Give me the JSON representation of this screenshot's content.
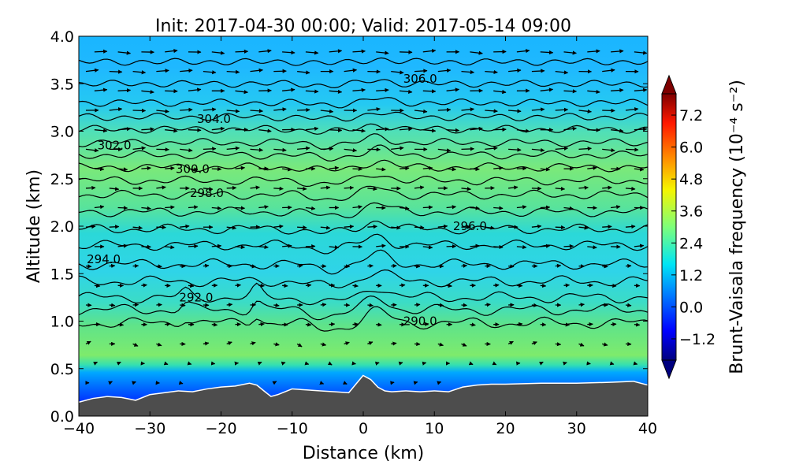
{
  "chart_data": {
    "type": "contour",
    "title": "Init: 2017-04-30 00:00; Valid: 2017-05-14 09:00",
    "xlabel": "Distance (km)",
    "ylabel": "Altitude (km)",
    "xlim": [
      -40,
      40
    ],
    "ylim": [
      0,
      4
    ],
    "x_ticks": [
      "−40",
      "−30",
      "−20",
      "−10",
      "0",
      "10",
      "20",
      "30",
      "40"
    ],
    "y_ticks": [
      "0.0",
      "0.5",
      "1.0",
      "1.5",
      "2.0",
      "2.5",
      "3.0",
      "3.5",
      "4.0"
    ],
    "grid": false,
    "colorbar": {
      "label": "Brunt-Vaisala frequency (10⁻⁴ s⁻²)",
      "range": [
        -2.0,
        8.0
      ],
      "ticks": [
        "−1.2",
        "0.0",
        "1.2",
        "2.4",
        "3.6",
        "4.8",
        "6.0",
        "7.2"
      ],
      "colormap": "jet",
      "extend": "both"
    },
    "contour_labels": [
      {
        "text": "306.0",
        "x": 8.0,
        "y": 3.55
      },
      {
        "text": "304.0",
        "x": -21.0,
        "y": 3.13
      },
      {
        "text": "302.0",
        "x": -35.0,
        "y": 2.85
      },
      {
        "text": "300.0",
        "x": -24.0,
        "y": 2.6
      },
      {
        "text": "298.0",
        "x": -22.0,
        "y": 2.35
      },
      {
        "text": "296.0",
        "x": 15.0,
        "y": 2.0
      },
      {
        "text": "294.0",
        "x": -36.5,
        "y": 1.65
      },
      {
        "text": "292.0",
        "x": -23.5,
        "y": 1.25
      },
      {
        "text": "290.0",
        "x": 8.0,
        "y": 1.0
      }
    ],
    "terrain": {
      "x": [
        -40,
        -38,
        -36,
        -34,
        -32,
        -30,
        -28,
        -26,
        -24,
        -22,
        -20,
        -18,
        -16,
        -15,
        -14,
        -13,
        -12,
        -10,
        -8,
        -6,
        -4,
        -2,
        0,
        1,
        2,
        3,
        4,
        6,
        8,
        10,
        12,
        14,
        16,
        18,
        20,
        25,
        30,
        35,
        38,
        40
      ],
      "y": [
        0.14,
        0.18,
        0.2,
        0.19,
        0.16,
        0.22,
        0.24,
        0.26,
        0.25,
        0.28,
        0.3,
        0.31,
        0.34,
        0.32,
        0.26,
        0.2,
        0.22,
        0.28,
        0.27,
        0.26,
        0.25,
        0.24,
        0.42,
        0.38,
        0.3,
        0.26,
        0.25,
        0.26,
        0.25,
        0.26,
        0.25,
        0.3,
        0.32,
        0.33,
        0.33,
        0.34,
        0.34,
        0.35,
        0.36,
        0.32
      ]
    },
    "isentrope_levels": [
      290,
      291,
      292,
      293,
      294,
      295,
      296,
      297,
      298,
      299,
      300,
      301,
      302,
      303,
      304,
      305,
      306,
      307
    ],
    "colors": {
      "terrain": "#4d4d4d",
      "high_stability": "#7fe36b",
      "mid_stability": "#2fd3ee",
      "low_stability": "#0038ff"
    }
  }
}
